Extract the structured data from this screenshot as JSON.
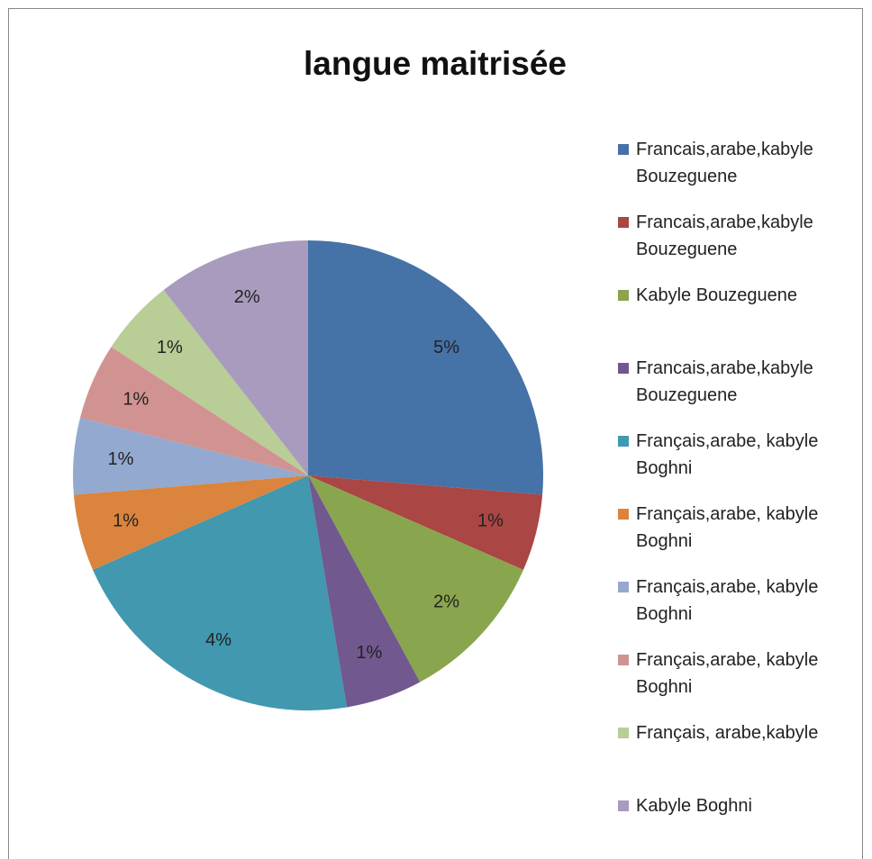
{
  "chart_data": {
    "type": "pie",
    "title": "langue maitrisée",
    "categories": [
      "Francais,arabe,kabyle Bouzeguene",
      "Francais,arabe,kabyle Bouzeguene",
      "Kabyle Bouzeguene",
      "Francais,arabe,kabyle Bouzeguene",
      "Français,arabe, kabyle Boghni",
      "Français,arabe, kabyle Boghni",
      "Français,arabe, kabyle Boghni",
      "Français,arabe, kabyle Boghni",
      "Français, arabe,kabyle",
      "Kabyle Boghni"
    ],
    "values": [
      5,
      1,
      2,
      1,
      4,
      1,
      1,
      1,
      1,
      2
    ],
    "value_labels": [
      "5%",
      "1%",
      "2%",
      "1%",
      "4%",
      "1%",
      "1%",
      "1%",
      "1%",
      "2%"
    ],
    "colors": [
      "#4572A7",
      "#AA4643",
      "#89A54E",
      "#71588F",
      "#4198AF",
      "#DB843D",
      "#93A9CF",
      "#D19392",
      "#B9CD96",
      "#A99BBD"
    ],
    "legend": "right"
  }
}
